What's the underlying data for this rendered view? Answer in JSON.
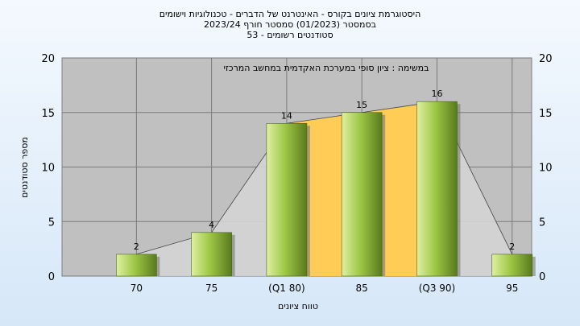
{
  "header": {
    "line1": "היסטוגרמת ציונים בקורס - האינטרנט של הדברים - טכנולוגיות וישומים",
    "line2": "בסמסטר  (01/2023)  סמסטר חורף  2023/24",
    "line3": "סטודנטים רשומים - 53"
  },
  "chart_data": {
    "type": "bar",
    "title": "היסטוגרמת ציונים בקורס - האינטרנט של הדברים - טכנולוגיות וישומים",
    "subtitle": "בסמסטר  (01/2023)  סמסטר חורף  2023/24",
    "annotation": "במשימה : ציון סופי במערכת האקדמית במחשב המרכזי",
    "xlabel": "טווח ציונים",
    "ylabel": "מספר סטודנטים",
    "categories": [
      "70",
      "75",
      "(Q1 80)",
      "85",
      "(Q3 90)",
      "95"
    ],
    "values": [
      2,
      4,
      14,
      15,
      16,
      2
    ],
    "ylim": [
      0,
      20
    ],
    "yticks": [
      0,
      5,
      10,
      15,
      20
    ],
    "grid": true,
    "interquartile_band": {
      "from": "(Q1 80)",
      "to": "(Q3 90)"
    },
    "colors": {
      "bar_light": "#dff0a0",
      "bar_dark": "#5a7a1e",
      "plot_bg": "#c0c0c0",
      "band": "#ffcc55",
      "envelope": "#d4d4d4"
    }
  }
}
